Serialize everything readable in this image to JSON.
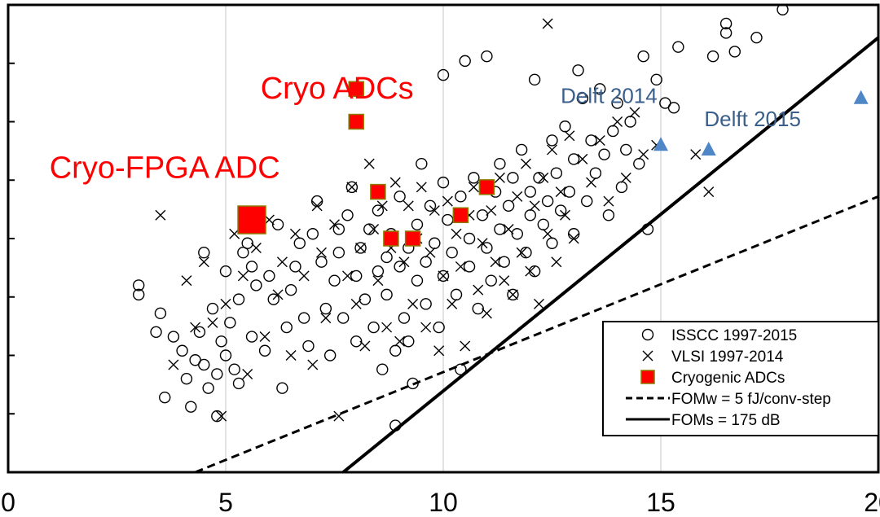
{
  "chart_data": {
    "type": "scatter",
    "xlim": [
      0,
      20
    ],
    "x_ticks": [
      {
        "value": 0,
        "label": "0"
      },
      {
        "value": 5,
        "label": "5"
      },
      {
        "value": 10,
        "label": "10"
      },
      {
        "value": 15,
        "label": "15"
      },
      {
        "value": 20,
        "label": "20"
      }
    ],
    "y_tick_count": 8,
    "grid": "vertical",
    "legend_position": "bottom-right",
    "annotations": [
      {
        "text": "Cryo ADCs",
        "color": "#ff0000",
        "x": 5.8,
        "yf": 0.2
      },
      {
        "text": "Cryo-FPGA ADC",
        "color": "#ff0000",
        "x": 0.95,
        "yf": 0.37
      },
      {
        "text": "Delft 2014",
        "color": "#3a5f8a",
        "x": 12.7,
        "yf": 0.21
      },
      {
        "text": "Delft 2015",
        "color": "#3a5f8a",
        "x": 16.0,
        "yf": 0.26
      }
    ],
    "series": [
      {
        "name": "ISSCC 1997-2015",
        "marker": "circle",
        "color": "#000000",
        "points": [
          [
            3.0,
            0.4
          ],
          [
            3.0,
            0.38
          ],
          [
            3.4,
            0.3
          ],
          [
            3.5,
            0.34
          ],
          [
            3.6,
            0.16
          ],
          [
            3.8,
            0.29
          ],
          [
            4.0,
            0.26
          ],
          [
            4.1,
            0.2
          ],
          [
            4.2,
            0.14
          ],
          [
            4.3,
            0.24
          ],
          [
            4.4,
            0.3
          ],
          [
            4.5,
            0.47
          ],
          [
            4.5,
            0.23
          ],
          [
            4.6,
            0.18
          ],
          [
            4.7,
            0.35
          ],
          [
            4.8,
            0.12
          ],
          [
            4.8,
            0.21
          ],
          [
            4.9,
            0.28
          ],
          [
            5.0,
            0.25
          ],
          [
            5.0,
            0.43
          ],
          [
            5.1,
            0.32
          ],
          [
            5.2,
            0.22
          ],
          [
            5.3,
            0.37
          ],
          [
            5.3,
            0.19
          ],
          [
            5.4,
            0.47
          ],
          [
            5.5,
            0.49
          ],
          [
            5.6,
            0.29
          ],
          [
            5.6,
            0.44
          ],
          [
            5.7,
            0.4
          ],
          [
            5.9,
            0.26
          ],
          [
            6.0,
            0.42
          ],
          [
            6.1,
            0.37
          ],
          [
            6.2,
            0.53
          ],
          [
            6.3,
            0.18
          ],
          [
            6.4,
            0.31
          ],
          [
            6.5,
            0.39
          ],
          [
            6.6,
            0.44
          ],
          [
            6.7,
            0.49
          ],
          [
            6.8,
            0.33
          ],
          [
            6.9,
            0.27
          ],
          [
            7.0,
            0.51
          ],
          [
            7.1,
            0.58
          ],
          [
            7.2,
            0.45
          ],
          [
            7.3,
            0.35
          ],
          [
            7.4,
            0.25
          ],
          [
            7.5,
            0.41
          ],
          [
            7.6,
            0.52
          ],
          [
            7.6,
            0.47
          ],
          [
            7.7,
            0.33
          ],
          [
            7.8,
            0.55
          ],
          [
            7.9,
            0.61
          ],
          [
            8.0,
            0.42
          ],
          [
            8.0,
            0.28
          ],
          [
            8.1,
            0.48
          ],
          [
            8.2,
            0.37
          ],
          [
            8.3,
            0.52
          ],
          [
            8.4,
            0.31
          ],
          [
            8.5,
            0.43
          ],
          [
            8.5,
            0.56
          ],
          [
            8.6,
            0.22
          ],
          [
            8.7,
            0.46
          ],
          [
            8.7,
            0.38
          ],
          [
            8.8,
            0.51
          ],
          [
            8.9,
            0.26
          ],
          [
            8.9,
            0.1
          ],
          [
            9.0,
            0.59
          ],
          [
            9.0,
            0.44
          ],
          [
            9.1,
            0.33
          ],
          [
            9.2,
            0.48
          ],
          [
            9.2,
            0.28
          ],
          [
            9.3,
            0.19
          ],
          [
            9.4,
            0.53
          ],
          [
            9.4,
            0.41
          ],
          [
            9.5,
            0.66
          ],
          [
            9.6,
            0.36
          ],
          [
            9.6,
            0.45
          ],
          [
            9.7,
            0.57
          ],
          [
            9.8,
            0.49
          ],
          [
            9.9,
            0.31
          ],
          [
            10.0,
            0.62
          ],
          [
            10.0,
            0.42
          ],
          [
            10.0,
            0.85
          ],
          [
            10.1,
            0.54
          ],
          [
            10.2,
            0.47
          ],
          [
            10.3,
            0.38
          ],
          [
            10.4,
            0.59
          ],
          [
            10.4,
            0.22
          ],
          [
            10.5,
            0.88
          ],
          [
            10.6,
            0.5
          ],
          [
            10.6,
            0.44
          ],
          [
            10.7,
            0.63
          ],
          [
            10.8,
            0.35
          ],
          [
            10.9,
            0.55
          ],
          [
            11.0,
            0.89
          ],
          [
            11.0,
            0.48
          ],
          [
            11.1,
            0.41
          ],
          [
            11.2,
            0.6
          ],
          [
            11.3,
            0.52
          ],
          [
            11.3,
            0.66
          ],
          [
            11.4,
            0.45
          ],
          [
            11.5,
            0.57
          ],
          [
            11.6,
            0.38
          ],
          [
            11.6,
            0.63
          ],
          [
            11.7,
            0.51
          ],
          [
            11.8,
            0.69
          ],
          [
            11.9,
            0.47
          ],
          [
            12.0,
            0.6
          ],
          [
            12.0,
            0.55
          ],
          [
            12.1,
            0.43
          ],
          [
            12.1,
            0.84
          ],
          [
            12.2,
            0.63
          ],
          [
            12.3,
            0.53
          ],
          [
            12.4,
            0.58
          ],
          [
            12.5,
            0.71
          ],
          [
            12.5,
            0.49
          ],
          [
            12.6,
            0.64
          ],
          [
            12.7,
            0.56
          ],
          [
            12.8,
            0.74
          ],
          [
            12.9,
            0.6
          ],
          [
            13.0,
            0.51
          ],
          [
            13.0,
            0.67
          ],
          [
            13.1,
            0.86
          ],
          [
            13.2,
            0.8
          ],
          [
            13.3,
            0.58
          ],
          [
            13.4,
            0.71
          ],
          [
            13.5,
            0.64
          ],
          [
            13.6,
            0.82
          ],
          [
            13.7,
            0.68
          ],
          [
            13.8,
            0.55
          ],
          [
            13.9,
            0.73
          ],
          [
            14.0,
            0.79
          ],
          [
            14.1,
            0.61
          ],
          [
            14.2,
            0.69
          ],
          [
            14.3,
            0.75
          ],
          [
            14.5,
            0.66
          ],
          [
            14.6,
            0.89
          ],
          [
            14.7,
            0.52
          ],
          [
            14.9,
            0.84
          ],
          [
            15.1,
            0.79
          ],
          [
            15.3,
            0.78
          ],
          [
            15.4,
            0.91
          ],
          [
            16.2,
            0.89
          ],
          [
            16.5,
            0.96
          ],
          [
            16.5,
            0.94
          ],
          [
            16.7,
            0.9
          ],
          [
            17.2,
            0.93
          ],
          [
            17.8,
            0.99
          ]
        ]
      },
      {
        "name": "VLSI 1997-2014",
        "marker": "x",
        "color": "#000000",
        "points": [
          [
            3.5,
            0.55
          ],
          [
            3.8,
            0.23
          ],
          [
            4.1,
            0.41
          ],
          [
            4.3,
            0.31
          ],
          [
            4.5,
            0.45
          ],
          [
            4.7,
            0.32
          ],
          [
            4.9,
            0.12
          ],
          [
            5.0,
            0.36
          ],
          [
            5.2,
            0.51
          ],
          [
            5.4,
            0.42
          ],
          [
            5.5,
            0.21
          ],
          [
            5.7,
            0.48
          ],
          [
            5.9,
            0.29
          ],
          [
            6.0,
            0.54
          ],
          [
            6.2,
            0.38
          ],
          [
            6.3,
            0.45
          ],
          [
            6.5,
            0.25
          ],
          [
            6.6,
            0.51
          ],
          [
            6.8,
            0.42
          ],
          [
            7.0,
            0.23
          ],
          [
            7.1,
            0.57
          ],
          [
            7.2,
            0.47
          ],
          [
            7.3,
            0.33
          ],
          [
            7.5,
            0.53
          ],
          [
            7.6,
            0.12
          ],
          [
            7.8,
            0.42
          ],
          [
            7.9,
            0.61
          ],
          [
            8.0,
            0.36
          ],
          [
            8.1,
            0.48
          ],
          [
            8.2,
            0.27
          ],
          [
            8.3,
            0.66
          ],
          [
            8.4,
            0.52
          ],
          [
            8.5,
            0.41
          ],
          [
            8.6,
            0.57
          ],
          [
            8.7,
            0.31
          ],
          [
            8.8,
            0.48
          ],
          [
            8.9,
            0.62
          ],
          [
            9.0,
            0.28
          ],
          [
            9.1,
            0.45
          ],
          [
            9.2,
            0.57
          ],
          [
            9.3,
            0.36
          ],
          [
            9.4,
            0.5
          ],
          [
            9.5,
            0.61
          ],
          [
            9.6,
            0.31
          ],
          [
            9.7,
            0.47
          ],
          [
            9.8,
            0.56
          ],
          [
            9.9,
            0.26
          ],
          [
            10.0,
            0.42
          ],
          [
            10.1,
            0.58
          ],
          [
            10.2,
            0.36
          ],
          [
            10.3,
            0.51
          ],
          [
            10.4,
            0.44
          ],
          [
            10.5,
            0.27
          ],
          [
            10.6,
            0.55
          ],
          [
            10.7,
            0.61
          ],
          [
            10.8,
            0.39
          ],
          [
            10.9,
            0.49
          ],
          [
            11.0,
            0.34
          ],
          [
            11.1,
            0.56
          ],
          [
            11.2,
            0.45
          ],
          [
            11.3,
            0.63
          ],
          [
            11.4,
            0.41
          ],
          [
            11.5,
            0.52
          ],
          [
            11.6,
            0.38
          ],
          [
            11.7,
            0.59
          ],
          [
            11.8,
            0.47
          ],
          [
            11.9,
            0.66
          ],
          [
            12.0,
            0.43
          ],
          [
            12.1,
            0.57
          ],
          [
            12.2,
            0.36
          ],
          [
            12.3,
            0.63
          ],
          [
            12.4,
            0.51
          ],
          [
            12.4,
            0.96
          ],
          [
            12.5,
            0.69
          ],
          [
            12.6,
            0.45
          ],
          [
            12.7,
            0.6
          ],
          [
            12.8,
            0.55
          ],
          [
            12.9,
            0.72
          ],
          [
            13.0,
            0.5
          ],
          [
            13.2,
            0.67
          ],
          [
            13.4,
            0.62
          ],
          [
            13.6,
            0.71
          ],
          [
            13.8,
            0.58
          ],
          [
            14.0,
            0.75
          ],
          [
            14.2,
            0.63
          ],
          [
            14.4,
            0.77
          ],
          [
            14.6,
            0.68
          ],
          [
            14.9,
            0.7
          ],
          [
            15.8,
            0.68
          ],
          [
            16.1,
            0.6
          ]
        ]
      },
      {
        "name": "Cryogenic ADCs",
        "marker": "square",
        "color": "#ff0000",
        "points": [
          [
            8.0,
            0.82
          ],
          [
            8.0,
            0.75
          ],
          [
            8.5,
            0.6
          ],
          [
            8.8,
            0.5
          ],
          [
            9.3,
            0.5
          ],
          [
            10.4,
            0.55
          ],
          [
            11.0,
            0.61
          ],
          [
            5.6,
            0.54
          ]
        ]
      },
      {
        "name": "Delft",
        "marker": "triangle",
        "color": "#4f86c6",
        "points": [
          [
            15.0,
            0.7
          ],
          [
            16.1,
            0.69
          ],
          [
            19.6,
            0.8
          ]
        ]
      }
    ],
    "lines": [
      {
        "name": "FOMw = 5 fJ/conv-step",
        "style": "dashed",
        "from": [
          4.3,
          0.0
        ],
        "to": [
          20.0,
          0.59
        ]
      },
      {
        "name": "FOMs = 175 dB",
        "style": "solid",
        "from": [
          7.7,
          0.0
        ],
        "to": [
          20.0,
          0.93
        ]
      }
    ]
  }
}
